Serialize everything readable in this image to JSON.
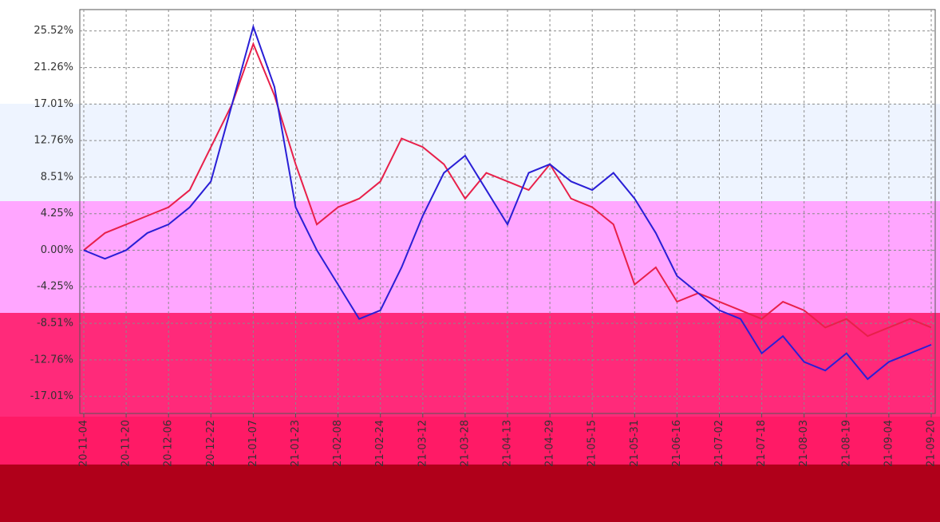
{
  "chart_data": {
    "type": "line",
    "categories": [
      "20-11-04",
      null,
      "20-11-20",
      null,
      "20-12-06",
      null,
      "20-12-22",
      null,
      "21-01-07",
      null,
      "21-01-23",
      null,
      "21-02-08",
      null,
      "21-02-24",
      null,
      "21-03-12",
      null,
      "21-03-28",
      null,
      "21-04-13",
      null,
      "21-04-29",
      null,
      "21-05-15",
      null,
      "21-05-31",
      null,
      "21-06-16",
      null,
      "21-07-02",
      null,
      "21-07-18",
      null,
      "21-08-03",
      null,
      "21-08-19",
      null,
      "21-09-04",
      null,
      "21-09-20"
    ],
    "series": [
      {
        "color": "#e8204a",
        "values": [
          0,
          2,
          3,
          4,
          5,
          7,
          12,
          17,
          24,
          18,
          10,
          3,
          5,
          6,
          8,
          13,
          12,
          10,
          6,
          9,
          8,
          7,
          10,
          6,
          5,
          3,
          -4,
          -2,
          -6,
          -5,
          -6,
          -7,
          -8,
          -6,
          -7,
          -9,
          -8,
          -10,
          -9,
          -8,
          -9
        ]
      },
      {
        "color": "#2a1fd6",
        "values": [
          0,
          -1,
          0,
          2,
          3,
          5,
          8,
          17,
          26,
          19,
          5,
          0,
          -4,
          -8,
          -7,
          -2,
          4,
          9,
          11,
          7,
          3,
          9,
          10,
          8,
          7,
          9,
          6,
          2,
          -3,
          -5,
          -7,
          -8,
          -12,
          -10,
          -13,
          -14,
          -12,
          -15,
          -13,
          -12,
          -11
        ]
      }
    ],
    "ylim": [
      -19,
      28
    ],
    "yticks": [
      {
        "value": 25.52,
        "label": "25.52%"
      },
      {
        "value": 21.26,
        "label": "21.26%"
      },
      {
        "value": 17.01,
        "label": "17.01%"
      },
      {
        "value": 12.76,
        "label": "12.76%"
      },
      {
        "value": 8.51,
        "label": "8.51%"
      },
      {
        "value": 4.25,
        "label": "4.25%"
      },
      {
        "value": 0,
        "label": "0.00%"
      },
      {
        "value": -4.25,
        "label": "-4.25%"
      },
      {
        "value": -8.51,
        "label": "-8.51%"
      },
      {
        "value": -12.76,
        "label": "-12.76%"
      },
      {
        "value": -17.01,
        "label": "-17.01%"
      }
    ],
    "grid": true
  }
}
